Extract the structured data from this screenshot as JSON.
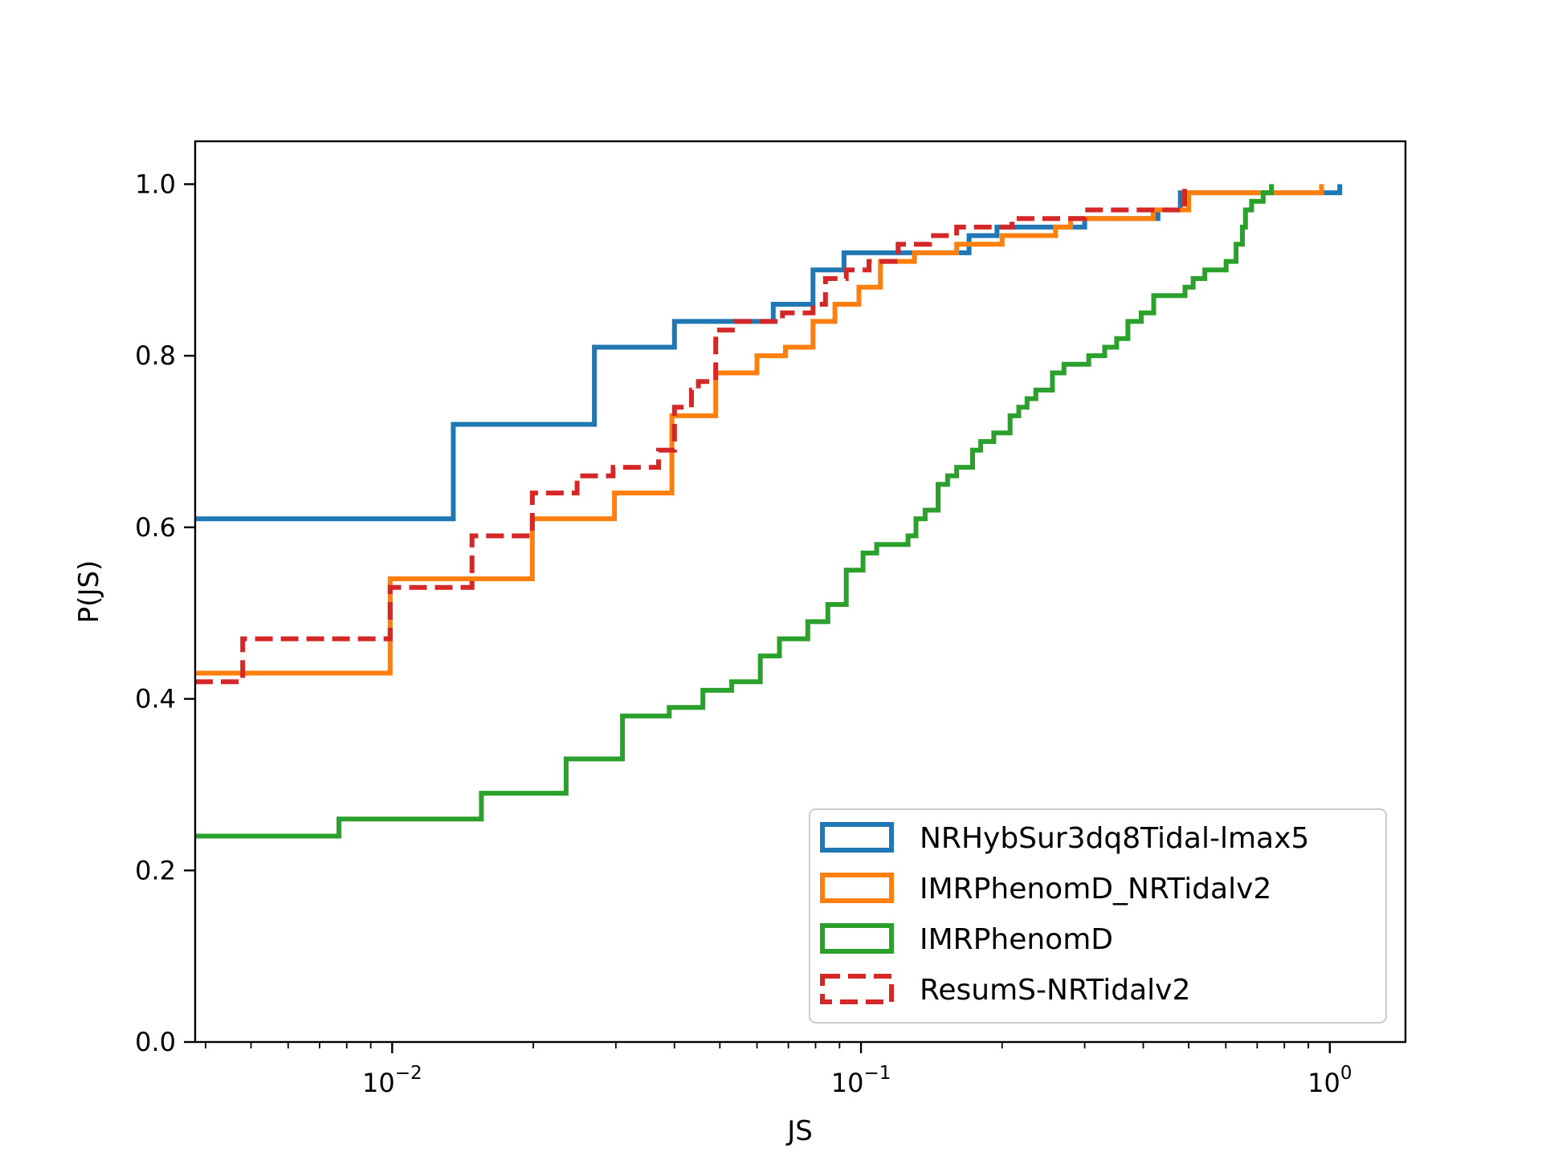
{
  "chart_data": {
    "type": "line",
    "subtype": "step-cdf",
    "title": "",
    "xlabel": "JS",
    "ylabel": "P(JS)",
    "xscale": "log",
    "xlim": [
      0.0038,
      1.45
    ],
    "ylim": [
      0.0,
      1.05
    ],
    "grid": false,
    "legend_position": "lower-right",
    "x_ticks": [
      {
        "value": 0.01,
        "base": "10",
        "exp": "−2"
      },
      {
        "value": 0.1,
        "base": "10",
        "exp": "−1"
      },
      {
        "value": 1,
        "base": "10",
        "exp": "0"
      }
    ],
    "y_ticks": [
      {
        "value": 0.0,
        "label": "0.0"
      },
      {
        "value": 0.2,
        "label": "0.2"
      },
      {
        "value": 0.4,
        "label": "0.4"
      },
      {
        "value": 0.6,
        "label": "0.6"
      },
      {
        "value": 0.8,
        "label": "0.8"
      },
      {
        "value": 1.0,
        "label": "1.0"
      }
    ],
    "series": [
      {
        "name": "NRHybSur3dq8Tidal-lmax5",
        "color": "#1f77b4",
        "dashed": false,
        "points": [
          [
            0.0038,
            0.61
          ],
          [
            0.0135,
            0.61
          ],
          [
            0.0135,
            0.72
          ],
          [
            0.027,
            0.72
          ],
          [
            0.027,
            0.81
          ],
          [
            0.04,
            0.81
          ],
          [
            0.04,
            0.84
          ],
          [
            0.065,
            0.84
          ],
          [
            0.065,
            0.86
          ],
          [
            0.079,
            0.86
          ],
          [
            0.079,
            0.9
          ],
          [
            0.092,
            0.9
          ],
          [
            0.092,
            0.92
          ],
          [
            0.14,
            0.92
          ],
          [
            0.14,
            0.92
          ],
          [
            0.17,
            0.92
          ],
          [
            0.17,
            0.94
          ],
          [
            0.195,
            0.94
          ],
          [
            0.195,
            0.95
          ],
          [
            0.3,
            0.95
          ],
          [
            0.3,
            0.96
          ],
          [
            0.43,
            0.96
          ],
          [
            0.43,
            0.97
          ],
          [
            0.48,
            0.97
          ],
          [
            0.48,
            0.99
          ],
          [
            1.05,
            0.99
          ],
          [
            1.05,
            1.0
          ]
        ]
      },
      {
        "name": "IMRPhenomD_NRTidalv2",
        "color": "#ff7f0e",
        "dashed": false,
        "points": [
          [
            0.0038,
            0.43
          ],
          [
            0.0099,
            0.43
          ],
          [
            0.0099,
            0.54
          ],
          [
            0.0199,
            0.54
          ],
          [
            0.0199,
            0.61
          ],
          [
            0.0298,
            0.61
          ],
          [
            0.0298,
            0.64
          ],
          [
            0.0395,
            0.64
          ],
          [
            0.0395,
            0.73
          ],
          [
            0.049,
            0.73
          ],
          [
            0.049,
            0.78
          ],
          [
            0.06,
            0.78
          ],
          [
            0.06,
            0.8
          ],
          [
            0.069,
            0.8
          ],
          [
            0.069,
            0.81
          ],
          [
            0.079,
            0.81
          ],
          [
            0.079,
            0.84
          ],
          [
            0.088,
            0.84
          ],
          [
            0.088,
            0.86
          ],
          [
            0.099,
            0.86
          ],
          [
            0.099,
            0.88
          ],
          [
            0.11,
            0.88
          ],
          [
            0.11,
            0.91
          ],
          [
            0.13,
            0.91
          ],
          [
            0.13,
            0.92
          ],
          [
            0.16,
            0.92
          ],
          [
            0.16,
            0.93
          ],
          [
            0.2,
            0.93
          ],
          [
            0.2,
            0.94
          ],
          [
            0.26,
            0.94
          ],
          [
            0.26,
            0.95
          ],
          [
            0.28,
            0.95
          ],
          [
            0.28,
            0.96
          ],
          [
            0.42,
            0.96
          ],
          [
            0.42,
            0.97
          ],
          [
            0.5,
            0.97
          ],
          [
            0.5,
            0.99
          ],
          [
            0.96,
            0.99
          ],
          [
            0.96,
            1.0
          ]
        ]
      },
      {
        "name": "IMRPhenomD",
        "color": "#2ca02c",
        "dashed": false,
        "points": [
          [
            0.0038,
            0.24
          ],
          [
            0.0077,
            0.24
          ],
          [
            0.0077,
            0.26
          ],
          [
            0.0155,
            0.26
          ],
          [
            0.0155,
            0.29
          ],
          [
            0.0235,
            0.29
          ],
          [
            0.0235,
            0.33
          ],
          [
            0.031,
            0.33
          ],
          [
            0.031,
            0.38
          ],
          [
            0.039,
            0.38
          ],
          [
            0.039,
            0.39
          ],
          [
            0.046,
            0.39
          ],
          [
            0.046,
            0.41
          ],
          [
            0.053,
            0.41
          ],
          [
            0.053,
            0.42
          ],
          [
            0.061,
            0.42
          ],
          [
            0.061,
            0.45
          ],
          [
            0.067,
            0.45
          ],
          [
            0.067,
            0.47
          ],
          [
            0.077,
            0.47
          ],
          [
            0.077,
            0.49
          ],
          [
            0.085,
            0.49
          ],
          [
            0.085,
            0.51
          ],
          [
            0.093,
            0.51
          ],
          [
            0.093,
            0.55
          ],
          [
            0.101,
            0.55
          ],
          [
            0.101,
            0.57
          ],
          [
            0.108,
            0.57
          ],
          [
            0.108,
            0.58
          ],
          [
            0.126,
            0.58
          ],
          [
            0.126,
            0.59
          ],
          [
            0.131,
            0.59
          ],
          [
            0.131,
            0.61
          ],
          [
            0.137,
            0.61
          ],
          [
            0.137,
            0.62
          ],
          [
            0.146,
            0.62
          ],
          [
            0.146,
            0.65
          ],
          [
            0.153,
            0.65
          ],
          [
            0.153,
            0.66
          ],
          [
            0.16,
            0.66
          ],
          [
            0.16,
            0.67
          ],
          [
            0.173,
            0.67
          ],
          [
            0.173,
            0.69
          ],
          [
            0.18,
            0.69
          ],
          [
            0.18,
            0.7
          ],
          [
            0.192,
            0.7
          ],
          [
            0.192,
            0.71
          ],
          [
            0.208,
            0.71
          ],
          [
            0.208,
            0.73
          ],
          [
            0.217,
            0.73
          ],
          [
            0.217,
            0.74
          ],
          [
            0.226,
            0.74
          ],
          [
            0.226,
            0.75
          ],
          [
            0.236,
            0.75
          ],
          [
            0.236,
            0.76
          ],
          [
            0.256,
            0.76
          ],
          [
            0.256,
            0.78
          ],
          [
            0.271,
            0.78
          ],
          [
            0.271,
            0.79
          ],
          [
            0.306,
            0.79
          ],
          [
            0.306,
            0.8
          ],
          [
            0.331,
            0.8
          ],
          [
            0.331,
            0.81
          ],
          [
            0.351,
            0.81
          ],
          [
            0.351,
            0.82
          ],
          [
            0.371,
            0.82
          ],
          [
            0.371,
            0.84
          ],
          [
            0.396,
            0.84
          ],
          [
            0.396,
            0.85
          ],
          [
            0.421,
            0.85
          ],
          [
            0.421,
            0.87
          ],
          [
            0.491,
            0.87
          ],
          [
            0.491,
            0.88
          ],
          [
            0.511,
            0.88
          ],
          [
            0.511,
            0.89
          ],
          [
            0.541,
            0.89
          ],
          [
            0.541,
            0.9
          ],
          [
            0.601,
            0.9
          ],
          [
            0.601,
            0.91
          ],
          [
            0.631,
            0.91
          ],
          [
            0.631,
            0.93
          ],
          [
            0.651,
            0.93
          ],
          [
            0.651,
            0.95
          ],
          [
            0.661,
            0.95
          ],
          [
            0.661,
            0.97
          ],
          [
            0.681,
            0.97
          ],
          [
            0.681,
            0.98
          ],
          [
            0.721,
            0.98
          ],
          [
            0.721,
            0.99
          ],
          [
            0.751,
            0.99
          ],
          [
            0.751,
            1.0
          ]
        ]
      },
      {
        "name": "ResumS-NRTidalv2",
        "color": "#d62728",
        "dashed": true,
        "points": [
          [
            0.0038,
            0.42
          ],
          [
            0.0048,
            0.42
          ],
          [
            0.0048,
            0.47
          ],
          [
            0.0099,
            0.47
          ],
          [
            0.0099,
            0.53
          ],
          [
            0.0148,
            0.53
          ],
          [
            0.0148,
            0.59
          ],
          [
            0.0199,
            0.59
          ],
          [
            0.0199,
            0.64
          ],
          [
            0.0248,
            0.64
          ],
          [
            0.0248,
            0.66
          ],
          [
            0.0296,
            0.66
          ],
          [
            0.0296,
            0.67
          ],
          [
            0.037,
            0.67
          ],
          [
            0.037,
            0.69
          ],
          [
            0.04,
            0.69
          ],
          [
            0.04,
            0.74
          ],
          [
            0.0435,
            0.74
          ],
          [
            0.0435,
            0.76
          ],
          [
            0.045,
            0.76
          ],
          [
            0.045,
            0.77
          ],
          [
            0.049,
            0.77
          ],
          [
            0.049,
            0.83
          ],
          [
            0.054,
            0.83
          ],
          [
            0.054,
            0.84
          ],
          [
            0.068,
            0.84
          ],
          [
            0.068,
            0.85
          ],
          [
            0.079,
            0.85
          ],
          [
            0.079,
            0.86
          ],
          [
            0.084,
            0.86
          ],
          [
            0.084,
            0.89
          ],
          [
            0.093,
            0.89
          ],
          [
            0.093,
            0.9
          ],
          [
            0.104,
            0.9
          ],
          [
            0.104,
            0.91
          ],
          [
            0.12,
            0.91
          ],
          [
            0.12,
            0.93
          ],
          [
            0.14,
            0.93
          ],
          [
            0.14,
            0.94
          ],
          [
            0.16,
            0.94
          ],
          [
            0.16,
            0.95
          ],
          [
            0.21,
            0.95
          ],
          [
            0.21,
            0.96
          ],
          [
            0.3,
            0.96
          ],
          [
            0.3,
            0.97
          ],
          [
            0.49,
            0.97
          ],
          [
            0.49,
            0.99
          ],
          [
            0.49,
            1.0
          ]
        ]
      }
    ]
  }
}
